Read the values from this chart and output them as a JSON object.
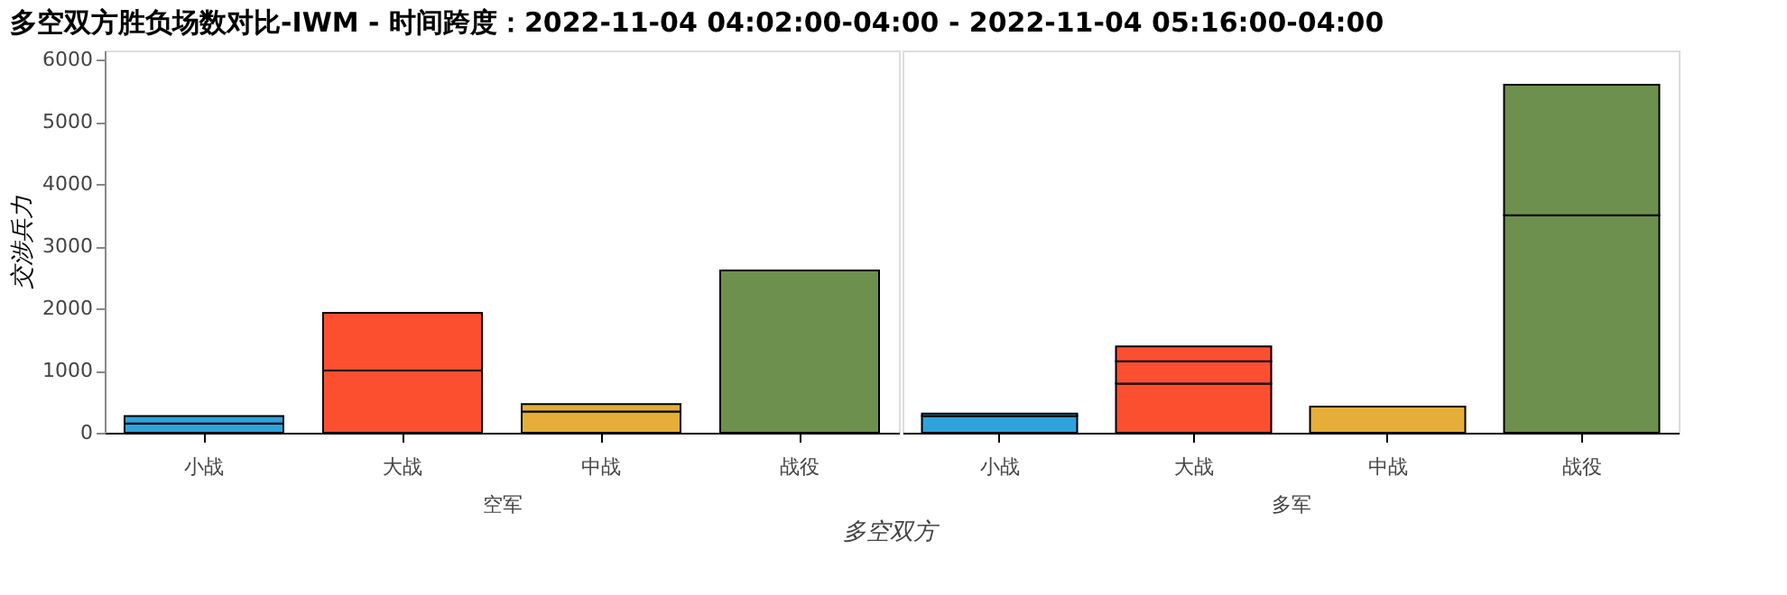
{
  "chart_data": {
    "type": "bar",
    "title": "多空双方胜负场数对比-IWM - 时间跨度：2022-11-04 04:02:00-04:00 - 2022-11-04 05:16:00-04:00",
    "xlabel": "多空双方",
    "ylabel": "交涉兵力",
    "categories": [
      "小战",
      "大战",
      "中战",
      "战役",
      "小战",
      "大战",
      "中战",
      "战役"
    ],
    "annotations": [
      "空军",
      "多军"
    ],
    "stacked": true,
    "series": [
      {
        "colors": [
          "#30a2da",
          "#fc4f30",
          "#e5ae38",
          "#6d904f",
          "#30a2da",
          "#fc4f30",
          "#e5ae38",
          "#6d904f"
        ],
        "values": [
          150,
          1000,
          340,
          2610,
          270,
          790,
          420,
          3500
        ]
      },
      {
        "colors": [
          "#30a2da",
          "#fc4f30",
          "#e5ae38",
          "#6d904f",
          "#30a2da",
          "#fc4f30",
          "#e5ae38",
          "#6d904f"
        ],
        "values": [
          120,
          930,
          120,
          null,
          40,
          360,
          null,
          2100
        ]
      },
      {
        "colors": [
          "#30a2da",
          "#fc4f30",
          "#e5ae38",
          "#6d904f",
          "#30a2da",
          "#fc4f30",
          "#e5ae38",
          "#6d904f"
        ],
        "values": [
          null,
          null,
          null,
          null,
          null,
          240,
          null,
          null
        ]
      }
    ],
    "ylim": [
      0,
      6150
    ],
    "yticks": [
      0,
      1000,
      2000,
      3000,
      4000,
      5000,
      6000
    ]
  }
}
